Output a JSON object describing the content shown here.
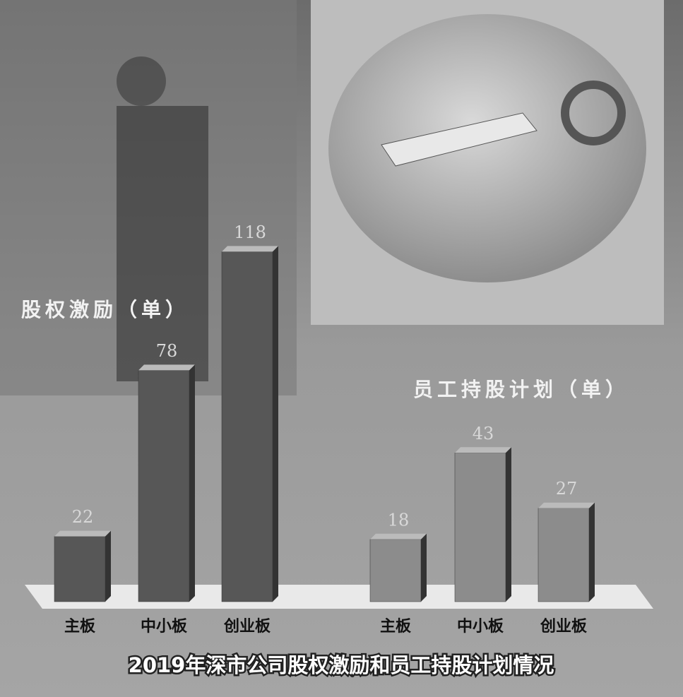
{
  "title": "2019年深市公司股权激励和员工持股计划情况",
  "chart_data": [
    {
      "type": "bar",
      "title": "股权激励（单）",
      "categories": [
        "主板",
        "中小板",
        "创业板"
      ],
      "values": [
        22,
        78,
        118
      ],
      "color": "#575757"
    },
    {
      "type": "bar",
      "title": "员工持股计划（单）",
      "categories": [
        "主板",
        "中小板",
        "创业板"
      ],
      "values": [
        18,
        43,
        27
      ],
      "color": "#8c8c8c"
    }
  ]
}
